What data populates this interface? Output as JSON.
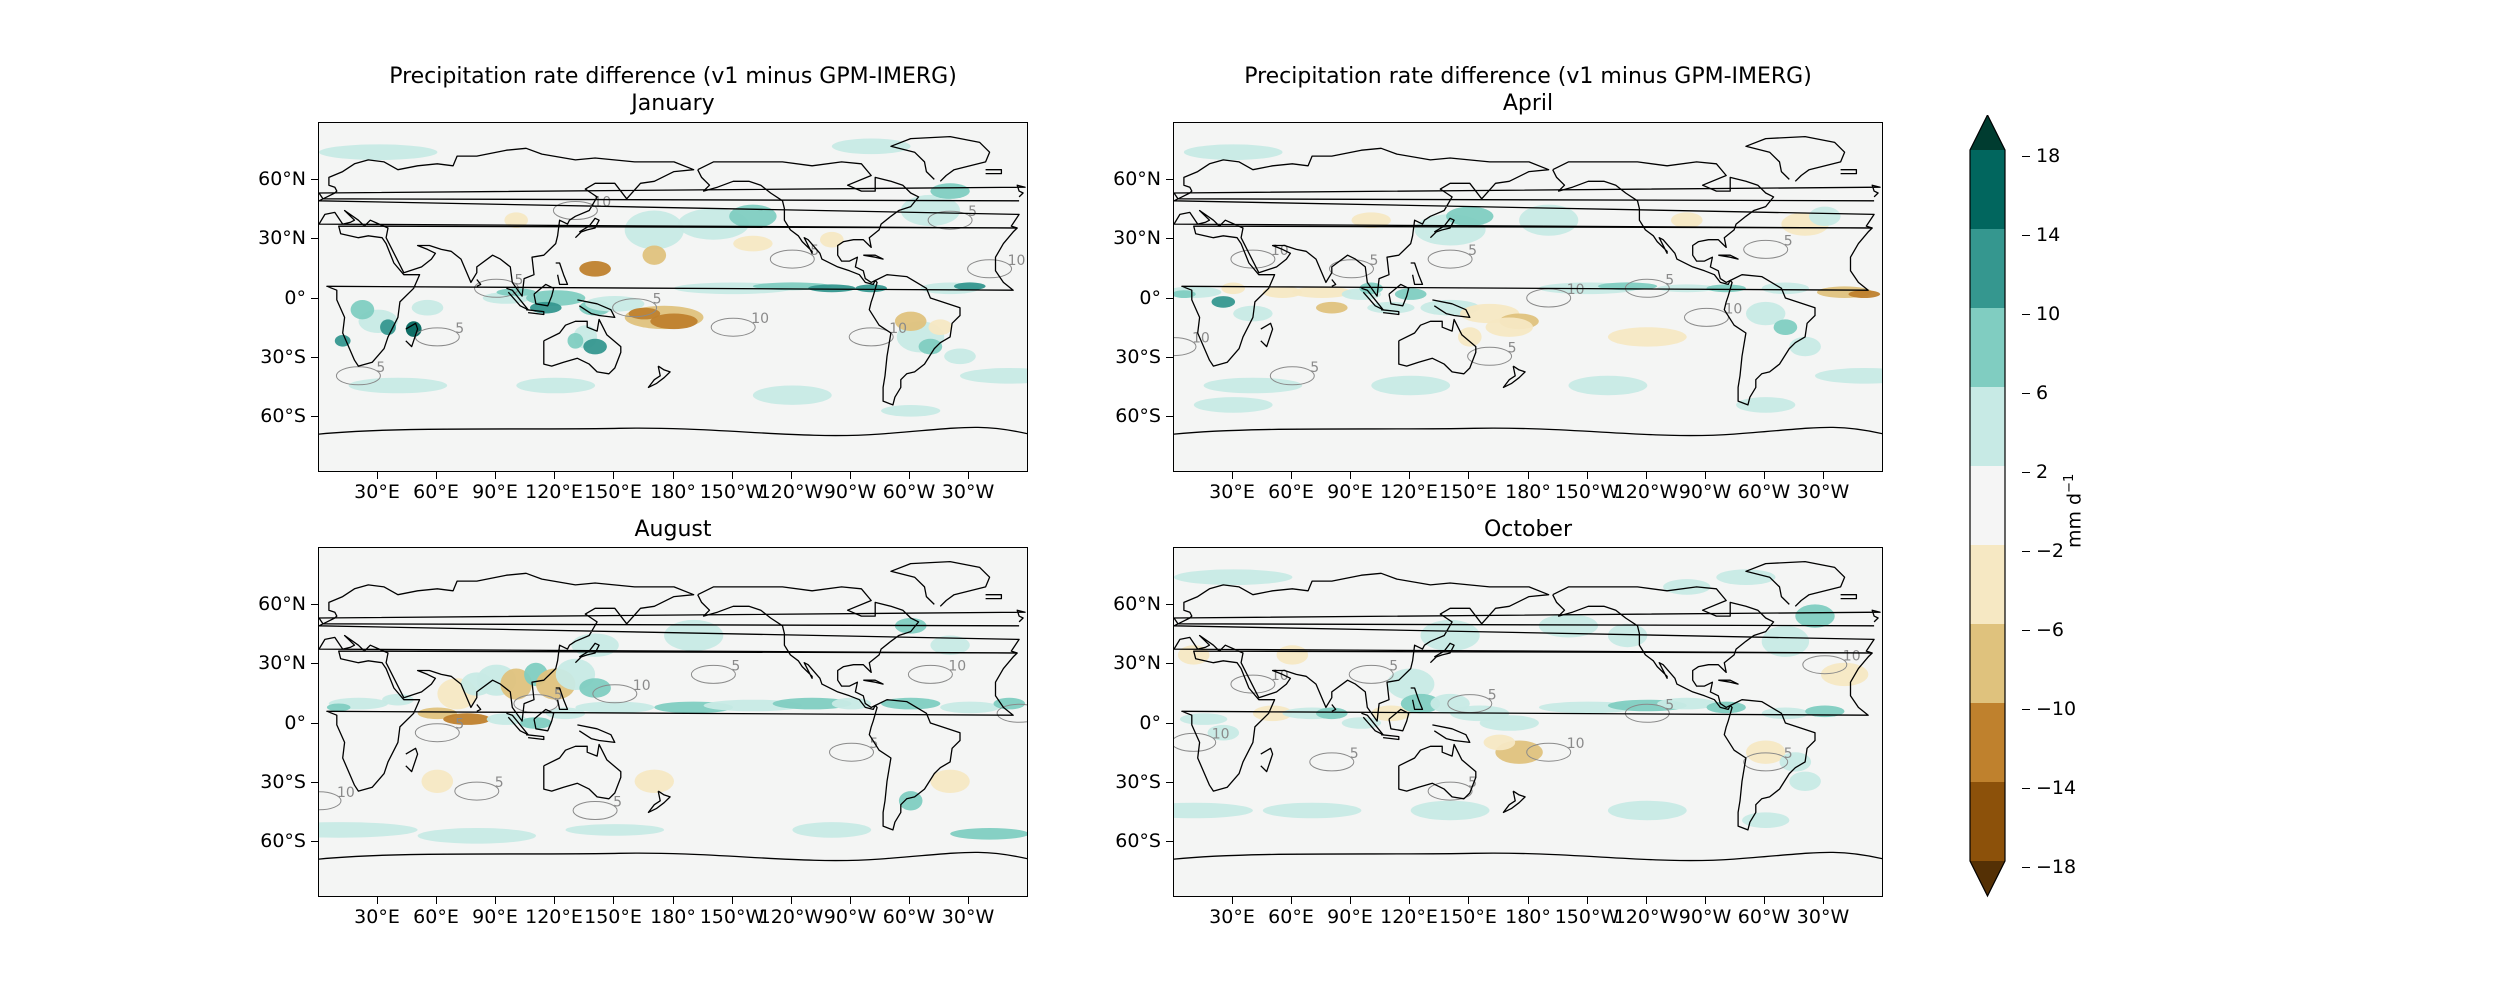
{
  "figure": {
    "panels": [
      {
        "id": "january",
        "title_line1": "Precipitation rate difference (v1 minus GPM-IMERG)",
        "title_line2": "January"
      },
      {
        "id": "april",
        "title_line1": "Precipitation rate difference (v1 minus GPM-IMERG)",
        "title_line2": "April"
      },
      {
        "id": "august",
        "title_line1": "",
        "title_line2": "August"
      },
      {
        "id": "october",
        "title_line1": "",
        "title_line2": "October"
      }
    ],
    "lat_ticks": [
      "60°N",
      "30°N",
      "0°",
      "30°S",
      "60°S"
    ],
    "lon_ticks": [
      "30°E",
      "60°E",
      "90°E",
      "120°E",
      "150°E",
      "180°",
      "150°W",
      "120°W",
      "90°W",
      "60°W",
      "30°W"
    ],
    "colorbar": {
      "label": "mm d",
      "label_sup": "−1",
      "ticks": [
        "18",
        "14",
        "10",
        "6",
        "2",
        "−2",
        "−6",
        "−10",
        "−14",
        "−18"
      ],
      "colors": [
        "#003c30",
        "#01665e",
        "#35978f",
        "#80cdc1",
        "#c7eae5",
        "#f5f5f5",
        "#f6e8c3",
        "#dfc27d",
        "#bf812d",
        "#8c510a",
        "#543005"
      ]
    },
    "contour_labels": [
      "5",
      "10"
    ]
  },
  "chart_data": {
    "type": "heatmap",
    "variable": "Precipitation rate difference (v1 minus GPM-IMERG)",
    "units": "mm d⁻¹",
    "panels": [
      "January",
      "April",
      "August",
      "October"
    ],
    "color_levels": [
      -18,
      -14,
      -10,
      -6,
      -2,
      2,
      6,
      10,
      14,
      18
    ],
    "extend": "both",
    "contour_levels": [
      5,
      10
    ],
    "lat_ticks": [
      "60°N",
      "30°N",
      "0°",
      "30°S",
      "60°S"
    ],
    "lon_ticks": [
      "30°E",
      "60°E",
      "90°E",
      "120°E",
      "150°E",
      "180°",
      "150°W",
      "120°W",
      "90°W",
      "60°W",
      "30°W"
    ]
  }
}
